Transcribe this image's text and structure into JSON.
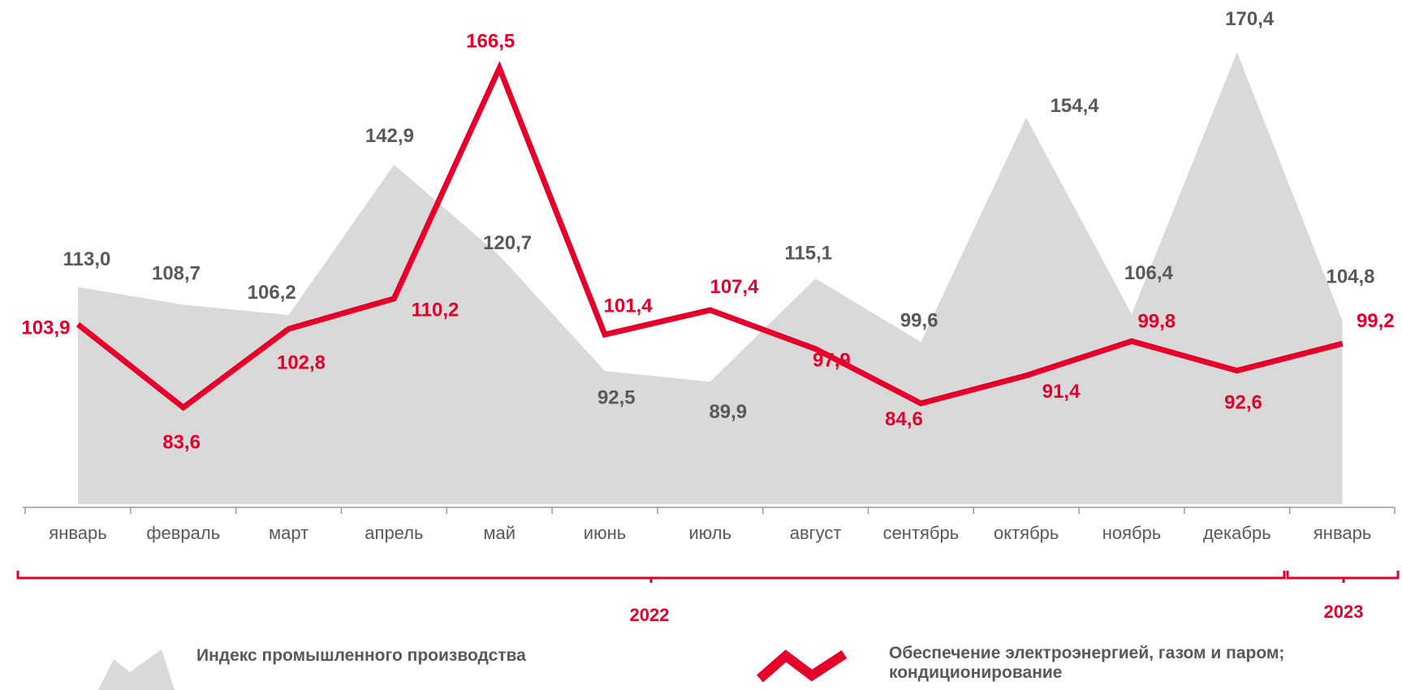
{
  "chart_data": {
    "type": "line",
    "categories": [
      "январь",
      "февраль",
      "март",
      "апрель",
      "май",
      "июнь",
      "июль",
      "август",
      "сентябрь",
      "октябрь",
      "ноябрь",
      "декабрь",
      "январь"
    ],
    "x_groups": [
      {
        "label": "2022"
      },
      {
        "label": "2023"
      }
    ],
    "ylim": [
      60,
      175
    ],
    "series": [
      {
        "name": "Индекс промышленного производства",
        "kind": "area",
        "color": "#d9d9d9",
        "label_color": "#595959",
        "values": [
          113.0,
          108.7,
          106.2,
          142.9,
          120.7,
          92.5,
          89.9,
          115.1,
          99.6,
          154.4,
          106.4,
          170.4,
          104.8
        ],
        "value_labels": [
          "113,0",
          "108,7",
          "106,2",
          "142,9",
          "120,7",
          "92,5",
          "89,9",
          "115,1",
          "99,6",
          "154,4",
          "106,4",
          "170,4",
          "104,8"
        ]
      },
      {
        "name": "Обеспечение электроэнергией, газом и паром; кондиционирование",
        "kind": "line",
        "color": "#e4002b",
        "label_color": "#e4002b",
        "values": [
          103.9,
          83.6,
          102.8,
          110.2,
          166.5,
          101.4,
          107.4,
          97.9,
          84.6,
          91.4,
          99.8,
          92.6,
          99.2
        ],
        "value_labels": [
          "103,9",
          "83,6",
          "102,8",
          "110,2",
          "166,5",
          "101,4",
          "107,4",
          "97,9",
          "84,6",
          "91,4",
          "99,8",
          "92,6",
          "99,2"
        ]
      }
    ]
  }
}
